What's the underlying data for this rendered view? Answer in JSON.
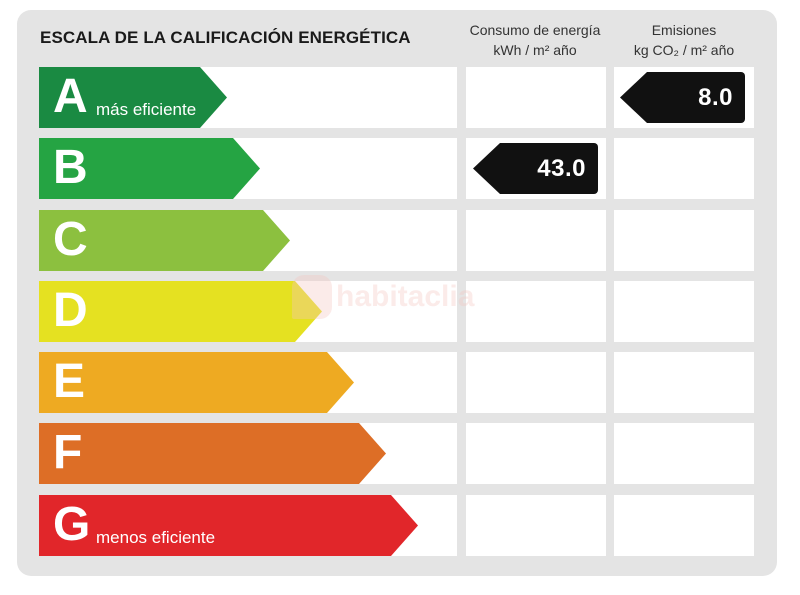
{
  "title": "ESCALA DE LA CALIFICACIÓN ENERGÉTICA",
  "columns": {
    "energy": {
      "line1": "Consumo de energía",
      "line2": "kWh / m² año"
    },
    "emissions": {
      "line1": "Emisiones",
      "line2": "kg CO₂ / m² año"
    }
  },
  "ratings": [
    {
      "letter": "A",
      "sublabel": "más eficiente",
      "color": "#1a8a42",
      "energy_value": "",
      "emissions_value": "8.0"
    },
    {
      "letter": "B",
      "sublabel": "",
      "color": "#25a443",
      "energy_value": "43.0",
      "emissions_value": ""
    },
    {
      "letter": "C",
      "sublabel": "",
      "color": "#8cc03f",
      "energy_value": "",
      "emissions_value": ""
    },
    {
      "letter": "D",
      "sublabel": "",
      "color": "#e5e121",
      "energy_value": "",
      "emissions_value": ""
    },
    {
      "letter": "E",
      "sublabel": "",
      "color": "#eeaa22",
      "energy_value": "",
      "emissions_value": ""
    },
    {
      "letter": "F",
      "sublabel": "",
      "color": "#dd6e26",
      "energy_value": "",
      "emissions_value": ""
    },
    {
      "letter": "G",
      "sublabel": "menos eficiente",
      "color": "#e1262a",
      "energy_value": "",
      "emissions_value": ""
    }
  ],
  "watermark": "habitaclia"
}
